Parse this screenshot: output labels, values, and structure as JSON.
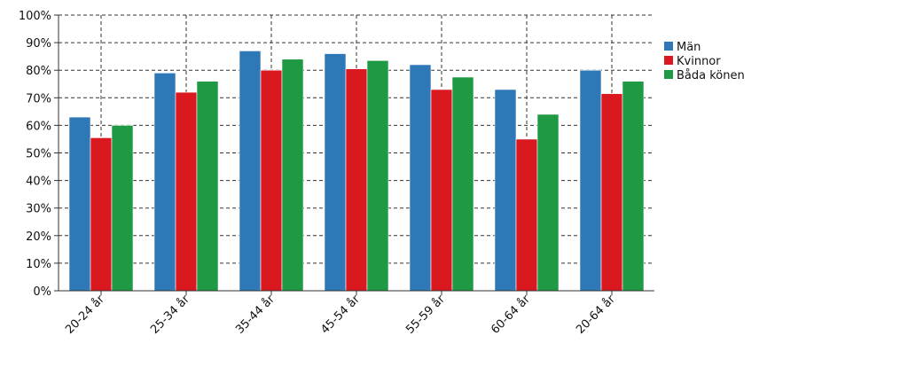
{
  "chart_data": {
    "type": "bar",
    "categories": [
      "20-24 år",
      "25-34 år",
      "35-44 år",
      "45-54 år",
      "55-59 år",
      "60-64 år",
      "20-64 år"
    ],
    "series": [
      {
        "name": "Män",
        "color": "#2e78b7",
        "values": [
          63,
          79,
          87,
          86,
          82,
          73,
          80
        ]
      },
      {
        "name": "Kvinnor",
        "color": "#d9191f",
        "values": [
          55.5,
          72,
          80,
          80.5,
          73,
          55,
          71.5
        ]
      },
      {
        "name": "Båda könen",
        "color": "#1f9944",
        "values": [
          60,
          76,
          84,
          83.5,
          77.5,
          64,
          76
        ]
      }
    ],
    "yticks": [
      "0%",
      "10%",
      "20%",
      "30%",
      "40%",
      "50%",
      "60%",
      "70%",
      "80%",
      "90%",
      "100%"
    ],
    "ylim": [
      0,
      100
    ],
    "grid": "dashed",
    "legend_position": "right"
  }
}
